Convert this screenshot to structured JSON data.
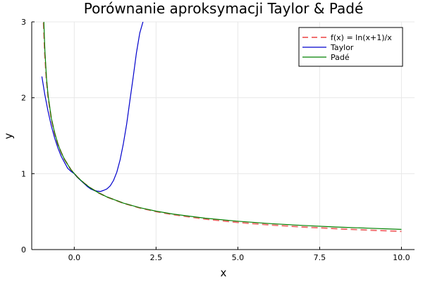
{
  "chart_data": {
    "type": "line",
    "title": "Porównanie aproksymacji Taylor & Padé",
    "xlabel": "x",
    "ylabel": "y",
    "xlim": [
      -1.3,
      10.4
    ],
    "ylim": [
      0,
      3
    ],
    "xticks": [
      0.0,
      2.5,
      5.0,
      7.5,
      10.0
    ],
    "xtick_labels": [
      "0.0",
      "2.5",
      "5.0",
      "7.5",
      "10.0"
    ],
    "yticks": [
      0,
      1,
      2,
      3
    ],
    "ytick_labels": [
      "0",
      "1",
      "2",
      "3"
    ],
    "grid": true,
    "legend_position": "top-right",
    "series": [
      {
        "name": "f(x) = ln(x+1)/x",
        "color": "#f07070",
        "style": "dashed",
        "x": [
          -0.94,
          -0.9,
          -0.85,
          -0.8,
          -0.7,
          -0.6,
          -0.5,
          -0.4,
          -0.3,
          -0.2,
          -0.1,
          0.1,
          0.3,
          0.5,
          0.75,
          1.0,
          1.5,
          2.0,
          2.5,
          3.0,
          4.0,
          5.0,
          6.0,
          7.0,
          8.0,
          9.0,
          10.0
        ],
        "y": [
          2.99,
          2.56,
          2.23,
          2.01,
          1.72,
          1.53,
          1.39,
          1.28,
          1.19,
          1.12,
          1.05,
          0.953,
          0.875,
          0.811,
          0.746,
          0.693,
          0.611,
          0.549,
          0.501,
          0.462,
          0.402,
          0.358,
          0.324,
          0.297,
          0.275,
          0.256,
          0.24
        ]
      },
      {
        "name": "Taylor",
        "color": "#0000cc",
        "style": "solid",
        "x": [
          -0.99,
          -0.9,
          -0.8,
          -0.7,
          -0.6,
          -0.5,
          -0.4,
          -0.3,
          -0.2,
          -0.1,
          0.0,
          0.1,
          0.2,
          0.3,
          0.4,
          0.5,
          0.6,
          0.7,
          0.8,
          0.9,
          1.0,
          1.1,
          1.2,
          1.3,
          1.4,
          1.5,
          1.6,
          1.7,
          1.8,
          1.9,
          2.0,
          2.1
        ],
        "y": [
          2.28,
          2.04,
          1.82,
          1.63,
          1.47,
          1.34,
          1.23,
          1.15,
          1.07,
          1.03,
          1.0,
          0.95,
          0.91,
          0.87,
          0.83,
          0.8,
          0.78,
          0.77,
          0.765,
          0.78,
          0.8,
          0.84,
          0.91,
          1.02,
          1.18,
          1.39,
          1.65,
          1.96,
          2.27,
          2.59,
          2.85,
          3.0
        ]
      },
      {
        "name": "Padé",
        "color": "#008000",
        "style": "solid",
        "x": [
          -0.93,
          -0.9,
          -0.85,
          -0.8,
          -0.7,
          -0.6,
          -0.5,
          -0.4,
          -0.3,
          -0.2,
          -0.1,
          0.1,
          0.3,
          0.5,
          0.75,
          1.0,
          1.5,
          2.0,
          2.5,
          3.0,
          4.0,
          5.0,
          6.0,
          7.0,
          8.0,
          9.0,
          10.0
        ],
        "y": [
          3.0,
          2.63,
          2.26,
          2.03,
          1.73,
          1.54,
          1.39,
          1.28,
          1.19,
          1.12,
          1.05,
          0.953,
          0.875,
          0.811,
          0.746,
          0.694,
          0.612,
          0.552,
          0.506,
          0.469,
          0.413,
          0.373,
          0.342,
          0.318,
          0.297,
          0.281,
          0.266
        ]
      }
    ]
  }
}
